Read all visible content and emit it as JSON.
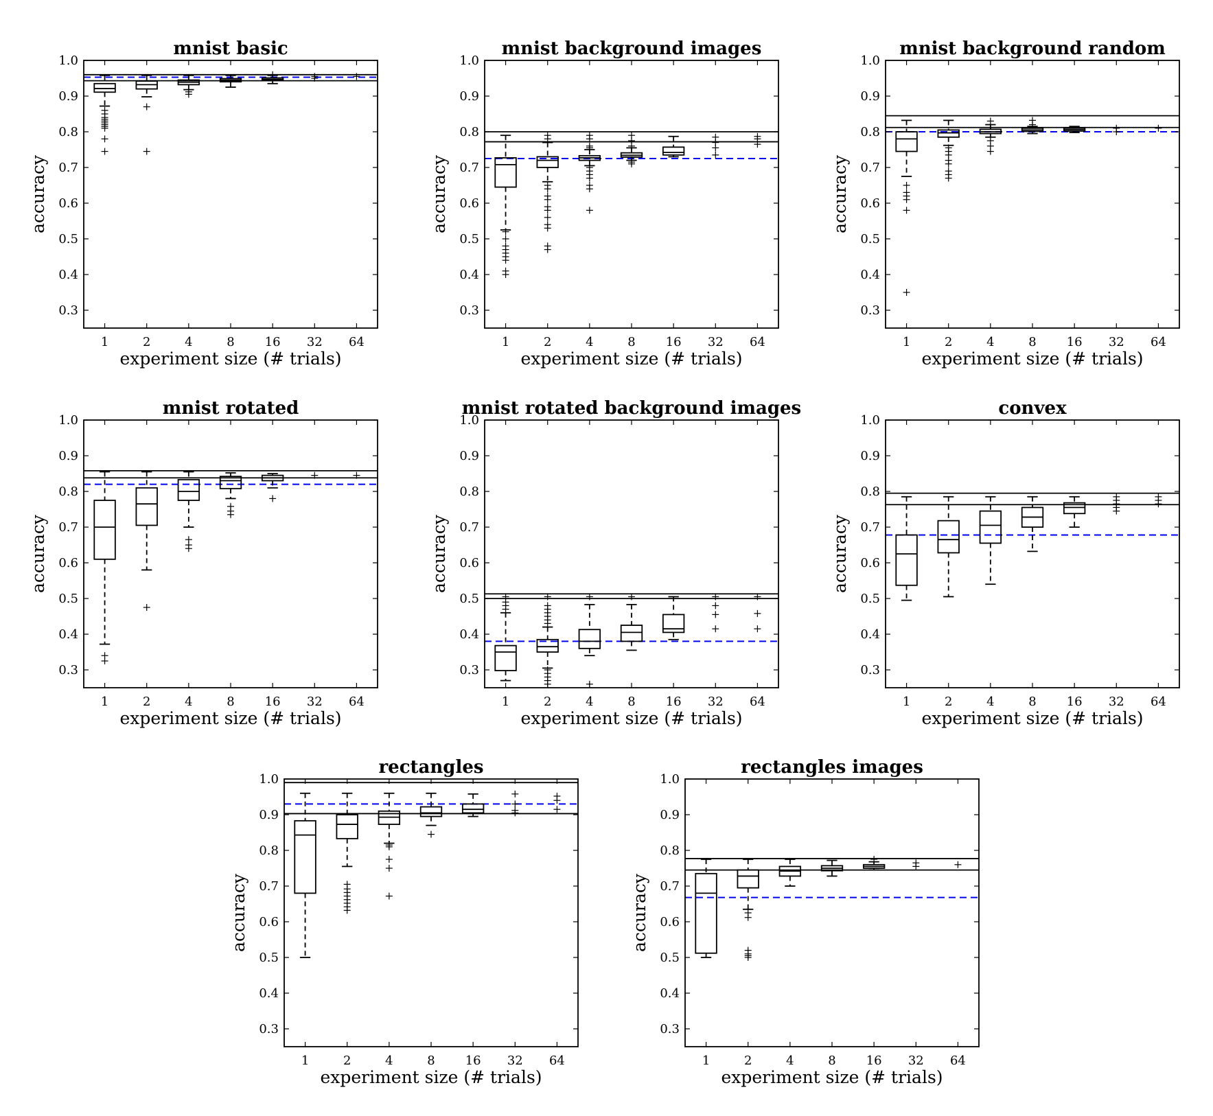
{
  "colors": {
    "box": "#000000",
    "reference": "#000000",
    "baseline": "#0000ee",
    "outlier": "#000000"
  },
  "chart_data": [
    {
      "type": "box",
      "title": "mnist basic",
      "xlabel": "experiment size (# trials)",
      "ylabel": "accuracy",
      "categories": [
        "1",
        "2",
        "4",
        "8",
        "16",
        "32",
        "64"
      ],
      "ylim": [
        0.25,
        1.0
      ],
      "yticks": [
        "0.3",
        "0.4",
        "0.5",
        "0.6",
        "0.7",
        "0.8",
        "0.9",
        "1.0"
      ],
      "reference_lines": [
        0.96,
        0.943
      ],
      "baseline": 0.953,
      "boxes": [
        {
          "lo": 0.872,
          "q1": 0.911,
          "med": 0.921,
          "q3": 0.935,
          "hi": 0.958,
          "outliers": [
            0.745,
            0.78,
            0.81,
            0.815,
            0.82,
            0.825,
            0.83,
            0.835,
            0.84,
            0.85,
            0.86
          ]
        },
        {
          "lo": 0.898,
          "q1": 0.92,
          "med": 0.932,
          "q3": 0.942,
          "hi": 0.958,
          "outliers": [
            0.745,
            0.87
          ]
        },
        {
          "lo": 0.918,
          "q1": 0.932,
          "med": 0.939,
          "q3": 0.945,
          "hi": 0.958,
          "outliers": [
            0.905,
            0.912
          ]
        },
        {
          "lo": 0.925,
          "q1": 0.94,
          "med": 0.945,
          "q3": 0.949,
          "hi": 0.958,
          "outliers": []
        },
        {
          "lo": 0.935,
          "q1": 0.944,
          "med": 0.947,
          "q3": 0.951,
          "hi": 0.958,
          "outliers": [
            0.96
          ]
        },
        {
          "lo": null,
          "q1": null,
          "med": null,
          "q3": null,
          "hi": null,
          "outliers": [
            0.95,
            0.955
          ]
        },
        {
          "lo": null,
          "q1": null,
          "med": null,
          "q3": null,
          "hi": null,
          "outliers": [
            0.955
          ]
        }
      ]
    },
    {
      "type": "box",
      "title": "mnist background images",
      "xlabel": "experiment size (# trials)",
      "ylabel": "accuracy",
      "categories": [
        "1",
        "2",
        "4",
        "8",
        "16",
        "32",
        "64"
      ],
      "ylim": [
        0.25,
        1.0
      ],
      "yticks": [
        "0.3",
        "0.4",
        "0.5",
        "0.6",
        "0.7",
        "0.8",
        "0.9",
        "1.0"
      ],
      "reference_lines": [
        0.8,
        0.772
      ],
      "baseline": 0.725,
      "boxes": [
        {
          "lo": 0.525,
          "q1": 0.645,
          "med": 0.708,
          "q3": 0.727,
          "hi": 0.79,
          "outliers": [
            0.4,
            0.41,
            0.44,
            0.45,
            0.46,
            0.47,
            0.48,
            0.5,
            0.52
          ]
        },
        {
          "lo": 0.66,
          "q1": 0.7,
          "med": 0.72,
          "q3": 0.73,
          "hi": 0.77,
          "outliers": [
            0.47,
            0.48,
            0.53,
            0.54,
            0.56,
            0.58,
            0.59,
            0.61,
            0.62,
            0.64,
            0.65,
            0.78,
            0.79
          ]
        },
        {
          "lo": 0.705,
          "q1": 0.72,
          "med": 0.727,
          "q3": 0.733,
          "hi": 0.75,
          "outliers": [
            0.58,
            0.64,
            0.65,
            0.67,
            0.68,
            0.69,
            0.7,
            0.755,
            0.76,
            0.78,
            0.79
          ]
        },
        {
          "lo": 0.72,
          "q1": 0.729,
          "med": 0.734,
          "q3": 0.741,
          "hi": 0.755,
          "outliers": [
            0.71,
            0.715,
            0.76,
            0.775,
            0.79
          ]
        },
        {
          "lo": 0.73,
          "q1": 0.735,
          "med": 0.742,
          "q3": 0.757,
          "hi": 0.787,
          "outliers": []
        },
        {
          "lo": null,
          "q1": null,
          "med": null,
          "q3": null,
          "hi": null,
          "outliers": [
            0.735,
            0.755,
            0.77,
            0.785
          ]
        },
        {
          "lo": null,
          "q1": null,
          "med": null,
          "q3": null,
          "hi": null,
          "outliers": [
            0.765,
            0.78,
            0.787
          ]
        }
      ]
    },
    {
      "type": "box",
      "title": "mnist background random",
      "xlabel": "experiment size (# trials)",
      "ylabel": "accuracy",
      "categories": [
        "1",
        "2",
        "4",
        "8",
        "16",
        "32",
        "64"
      ],
      "ylim": [
        0.25,
        1.0
      ],
      "yticks": [
        "0.3",
        "0.4",
        "0.5",
        "0.6",
        "0.7",
        "0.8",
        "0.9",
        "1.0"
      ],
      "reference_lines": [
        0.845,
        0.812
      ],
      "baseline": 0.8,
      "boxes": [
        {
          "lo": 0.675,
          "q1": 0.745,
          "med": 0.78,
          "q3": 0.8,
          "hi": 0.832,
          "outliers": [
            0.35,
            0.58,
            0.61,
            0.62,
            0.63,
            0.65
          ]
        },
        {
          "lo": 0.762,
          "q1": 0.785,
          "med": 0.797,
          "q3": 0.805,
          "hi": 0.832,
          "outliers": [
            0.67,
            0.68,
            0.69,
            0.71,
            0.72,
            0.735,
            0.745,
            0.755
          ]
        },
        {
          "lo": 0.785,
          "q1": 0.795,
          "med": 0.8,
          "q3": 0.807,
          "hi": 0.82,
          "outliers": [
            0.745,
            0.76,
            0.775,
            0.83
          ]
        },
        {
          "lo": 0.795,
          "q1": 0.801,
          "med": 0.805,
          "q3": 0.81,
          "hi": 0.815,
          "outliers": [
            0.82,
            0.832
          ]
        },
        {
          "lo": 0.798,
          "q1": 0.802,
          "med": 0.806,
          "q3": 0.81,
          "hi": 0.815,
          "outliers": []
        },
        {
          "lo": null,
          "q1": null,
          "med": null,
          "q3": null,
          "hi": null,
          "outliers": [
            0.8,
            0.81
          ]
        },
        {
          "lo": null,
          "q1": null,
          "med": null,
          "q3": null,
          "hi": null,
          "outliers": [
            0.81
          ]
        }
      ]
    },
    {
      "type": "box",
      "title": "mnist rotated",
      "xlabel": "experiment size (# trials)",
      "ylabel": "accuracy",
      "categories": [
        "1",
        "2",
        "4",
        "8",
        "16",
        "32",
        "64"
      ],
      "ylim": [
        0.25,
        1.0
      ],
      "yticks": [
        "0.3",
        "0.4",
        "0.5",
        "0.6",
        "0.7",
        "0.8",
        "0.9",
        "1.0"
      ],
      "reference_lines": [
        0.858,
        0.838
      ],
      "baseline": 0.82,
      "boxes": [
        {
          "lo": 0.372,
          "q1": 0.61,
          "med": 0.7,
          "q3": 0.775,
          "hi": 0.855,
          "outliers": [
            0.325,
            0.34
          ]
        },
        {
          "lo": 0.58,
          "q1": 0.705,
          "med": 0.765,
          "q3": 0.81,
          "hi": 0.855,
          "outliers": [
            0.475
          ]
        },
        {
          "lo": 0.7,
          "q1": 0.775,
          "med": 0.8,
          "q3": 0.833,
          "hi": 0.855,
          "outliers": [
            0.64,
            0.65,
            0.665
          ]
        },
        {
          "lo": 0.78,
          "q1": 0.808,
          "med": 0.83,
          "q3": 0.842,
          "hi": 0.852,
          "outliers": [
            0.735,
            0.745,
            0.758
          ]
        },
        {
          "lo": 0.81,
          "q1": 0.83,
          "med": 0.838,
          "q3": 0.845,
          "hi": 0.85,
          "outliers": [
            0.78
          ]
        },
        {
          "lo": null,
          "q1": null,
          "med": null,
          "q3": null,
          "hi": null,
          "outliers": [
            0.845
          ]
        },
        {
          "lo": null,
          "q1": null,
          "med": null,
          "q3": null,
          "hi": null,
          "outliers": [
            0.845
          ]
        }
      ]
    },
    {
      "type": "box",
      "title": "mnist rotated background images",
      "xlabel": "experiment size (# trials)",
      "ylabel": "accuracy",
      "categories": [
        "1",
        "2",
        "4",
        "8",
        "16",
        "32",
        "64"
      ],
      "ylim": [
        0.25,
        1.0
      ],
      "yticks": [
        "0.3",
        "0.4",
        "0.5",
        "0.6",
        "0.7",
        "0.8",
        "0.9",
        "1.0"
      ],
      "reference_lines": [
        0.513,
        0.5
      ],
      "baseline": 0.38,
      "boxes": [
        {
          "lo": 0.27,
          "q1": 0.298,
          "med": 0.35,
          "q3": 0.368,
          "hi": 0.46,
          "outliers": [
            0.47,
            0.48,
            0.49,
            0.505
          ]
        },
        {
          "lo": 0.305,
          "q1": 0.35,
          "med": 0.365,
          "q3": 0.385,
          "hi": 0.42,
          "outliers": [
            0.26,
            0.27,
            0.28,
            0.29,
            0.3,
            0.43,
            0.44,
            0.45,
            0.46,
            0.47,
            0.48,
            0.505
          ]
        },
        {
          "lo": 0.34,
          "q1": 0.36,
          "med": 0.38,
          "q3": 0.413,
          "hi": 0.483,
          "outliers": [
            0.26,
            0.505
          ]
        },
        {
          "lo": 0.355,
          "q1": 0.38,
          "med": 0.405,
          "q3": 0.425,
          "hi": 0.483,
          "outliers": [
            0.505
          ]
        },
        {
          "lo": 0.385,
          "q1": 0.405,
          "med": 0.415,
          "q3": 0.455,
          "hi": 0.505,
          "outliers": []
        },
        {
          "lo": null,
          "q1": null,
          "med": null,
          "q3": null,
          "hi": null,
          "outliers": [
            0.415,
            0.455,
            0.48,
            0.505
          ]
        },
        {
          "lo": null,
          "q1": null,
          "med": null,
          "q3": null,
          "hi": null,
          "outliers": [
            0.415,
            0.458,
            0.505
          ]
        }
      ]
    },
    {
      "type": "box",
      "title": "convex",
      "xlabel": "experiment size (# trials)",
      "ylabel": "accuracy",
      "categories": [
        "1",
        "2",
        "4",
        "8",
        "16",
        "32",
        "64"
      ],
      "ylim": [
        0.25,
        1.0
      ],
      "yticks": [
        "0.3",
        "0.4",
        "0.5",
        "0.6",
        "0.7",
        "0.8",
        "0.9",
        "1.0"
      ],
      "reference_lines": [
        0.795,
        0.763
      ],
      "baseline": 0.678,
      "boxes": [
        {
          "lo": 0.495,
          "q1": 0.537,
          "med": 0.625,
          "q3": 0.678,
          "hi": 0.785,
          "outliers": []
        },
        {
          "lo": 0.505,
          "q1": 0.628,
          "med": 0.665,
          "q3": 0.718,
          "hi": 0.785,
          "outliers": []
        },
        {
          "lo": 0.54,
          "q1": 0.655,
          "med": 0.705,
          "q3": 0.745,
          "hi": 0.785,
          "outliers": []
        },
        {
          "lo": 0.632,
          "q1": 0.7,
          "med": 0.728,
          "q3": 0.755,
          "hi": 0.785,
          "outliers": []
        },
        {
          "lo": 0.7,
          "q1": 0.738,
          "med": 0.755,
          "q3": 0.768,
          "hi": 0.785,
          "outliers": []
        },
        {
          "lo": null,
          "q1": null,
          "med": null,
          "q3": null,
          "hi": null,
          "outliers": [
            0.745,
            0.755,
            0.765,
            0.775,
            0.785
          ]
        },
        {
          "lo": null,
          "q1": null,
          "med": null,
          "q3": null,
          "hi": null,
          "outliers": [
            0.765,
            0.775,
            0.785
          ]
        }
      ]
    },
    {
      "type": "box",
      "title": "rectangles",
      "xlabel": "experiment size (# trials)",
      "ylabel": "accuracy",
      "categories": [
        "1",
        "2",
        "4",
        "8",
        "16",
        "32",
        "64"
      ],
      "ylim": [
        0.25,
        1.0
      ],
      "yticks": [
        "0.3",
        "0.4",
        "0.5",
        "0.6",
        "0.7",
        "0.8",
        "0.9",
        "1.0"
      ],
      "reference_lines": [
        0.99,
        0.903
      ],
      "baseline": 0.93,
      "boxes": [
        {
          "lo": 0.5,
          "q1": 0.68,
          "med": 0.843,
          "q3": 0.883,
          "hi": 0.96,
          "outliers": []
        },
        {
          "lo": 0.755,
          "q1": 0.833,
          "med": 0.873,
          "q3": 0.9,
          "hi": 0.96,
          "outliers": [
            0.632,
            0.642,
            0.652,
            0.662,
            0.672,
            0.682,
            0.692,
            0.705
          ]
        },
        {
          "lo": 0.82,
          "q1": 0.873,
          "med": 0.893,
          "q3": 0.91,
          "hi": 0.96,
          "outliers": [
            0.672,
            0.75,
            0.775,
            0.81,
            0.815
          ]
        },
        {
          "lo": 0.87,
          "q1": 0.895,
          "med": 0.905,
          "q3": 0.922,
          "hi": 0.96,
          "outliers": [
            0.845
          ]
        },
        {
          "lo": 0.895,
          "q1": 0.905,
          "med": 0.915,
          "q3": 0.93,
          "hi": 0.958,
          "outliers": []
        },
        {
          "lo": null,
          "q1": null,
          "med": null,
          "q3": null,
          "hi": null,
          "outliers": [
            0.905,
            0.912,
            0.93,
            0.958
          ]
        },
        {
          "lo": null,
          "q1": null,
          "med": null,
          "q3": null,
          "hi": null,
          "outliers": [
            0.915,
            0.94,
            0.952
          ]
        }
      ]
    },
    {
      "type": "box",
      "title": "rectangles images",
      "xlabel": "experiment size (# trials)",
      "ylabel": "accuracy",
      "categories": [
        "1",
        "2",
        "4",
        "8",
        "16",
        "32",
        "64"
      ],
      "ylim": [
        0.25,
        1.0
      ],
      "yticks": [
        "0.3",
        "0.4",
        "0.5",
        "0.6",
        "0.7",
        "0.8",
        "0.9",
        "1.0"
      ],
      "reference_lines": [
        0.777,
        0.745
      ],
      "baseline": 0.668,
      "boxes": [
        {
          "lo": 0.5,
          "q1": 0.512,
          "med": 0.68,
          "q3": 0.735,
          "hi": 0.775,
          "outliers": []
        },
        {
          "lo": 0.635,
          "q1": 0.695,
          "med": 0.728,
          "q3": 0.745,
          "hi": 0.775,
          "outliers": [
            0.5,
            0.505,
            0.51,
            0.52,
            0.612,
            0.625
          ]
        },
        {
          "lo": 0.7,
          "q1": 0.728,
          "med": 0.742,
          "q3": 0.755,
          "hi": 0.775,
          "outliers": []
        },
        {
          "lo": 0.728,
          "q1": 0.743,
          "med": 0.75,
          "q3": 0.757,
          "hi": 0.772,
          "outliers": []
        },
        {
          "lo": 0.745,
          "q1": 0.75,
          "med": 0.755,
          "q3": 0.76,
          "hi": 0.768,
          "outliers": [
            0.775
          ]
        },
        {
          "lo": null,
          "q1": null,
          "med": null,
          "q3": null,
          "hi": null,
          "outliers": [
            0.755,
            0.765
          ]
        },
        {
          "lo": null,
          "q1": null,
          "med": null,
          "q3": null,
          "hi": null,
          "outliers": [
            0.76
          ]
        }
      ]
    }
  ]
}
